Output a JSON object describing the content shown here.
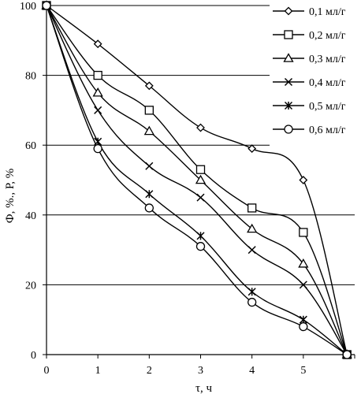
{
  "chart_data": {
    "type": "line",
    "xlabel": "τ, ч",
    "ylabel": "Ф, %., Р, %",
    "xlim": [
      0,
      6
    ],
    "ylim": [
      0,
      100
    ],
    "x_ticks": [
      "0",
      "1",
      "2",
      "3",
      "4",
      "5"
    ],
    "y_ticks": [
      "0",
      "20",
      "40",
      "60",
      "80",
      "100"
    ],
    "grid": "horizontal",
    "legend_position": "top-right",
    "series": [
      {
        "name": "0,1 мл/г",
        "marker": "diamond",
        "x": [
          0,
          1,
          2,
          3,
          4,
          5,
          5.85
        ],
        "y": [
          100,
          89,
          77,
          65,
          59,
          50,
          0
        ]
      },
      {
        "name": "0,2 мл/г",
        "marker": "square",
        "x": [
          0,
          1,
          2,
          3,
          4,
          5,
          5.85
        ],
        "y": [
          100,
          80,
          70,
          53,
          42,
          35,
          0
        ]
      },
      {
        "name": "0,3 мл/г",
        "marker": "triangle",
        "x": [
          0,
          1,
          2,
          3,
          4,
          5,
          5.85
        ],
        "y": [
          100,
          75,
          64,
          50,
          36,
          26,
          0
        ]
      },
      {
        "name": "0,4 мл/г",
        "marker": "x",
        "x": [
          0,
          1,
          2,
          3,
          4,
          5,
          5.85
        ],
        "y": [
          100,
          70,
          54,
          45,
          30,
          20,
          0
        ]
      },
      {
        "name": "0,5 мл/г",
        "marker": "star",
        "x": [
          0,
          1,
          2,
          3,
          4,
          5,
          5.85
        ],
        "y": [
          100,
          61,
          46,
          34,
          18,
          10,
          0
        ]
      },
      {
        "name": "0,6 мл/г",
        "marker": "circle",
        "x": [
          0,
          1,
          2,
          3,
          4,
          5,
          5.85
        ],
        "y": [
          100,
          59,
          42,
          31,
          15,
          8,
          0
        ]
      }
    ]
  }
}
